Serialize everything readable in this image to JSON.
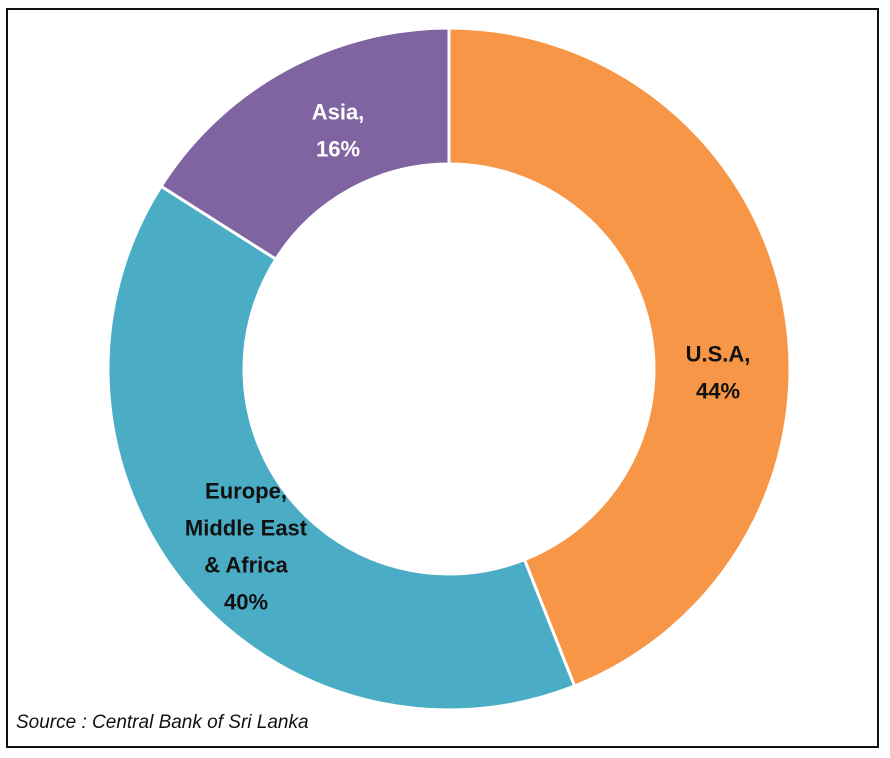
{
  "chart_data": {
    "type": "pie",
    "style": "donut",
    "slices": [
      {
        "label_lines": [
          "U.S.A,",
          "44%"
        ],
        "value": 44,
        "color": "#F79646",
        "text_color": "#111111"
      },
      {
        "label_lines": [
          "Europe,",
          "Middle East",
          "& Africa",
          "40%"
        ],
        "value": 40,
        "color": "#4BACC6",
        "text_color": "#111111"
      },
      {
        "label_lines": [
          "Asia,",
          "16%"
        ],
        "value": 16,
        "color": "#8064A2",
        "text_color": "#ffffff"
      }
    ]
  },
  "source": "Source : Central Bank of Sri Lanka"
}
